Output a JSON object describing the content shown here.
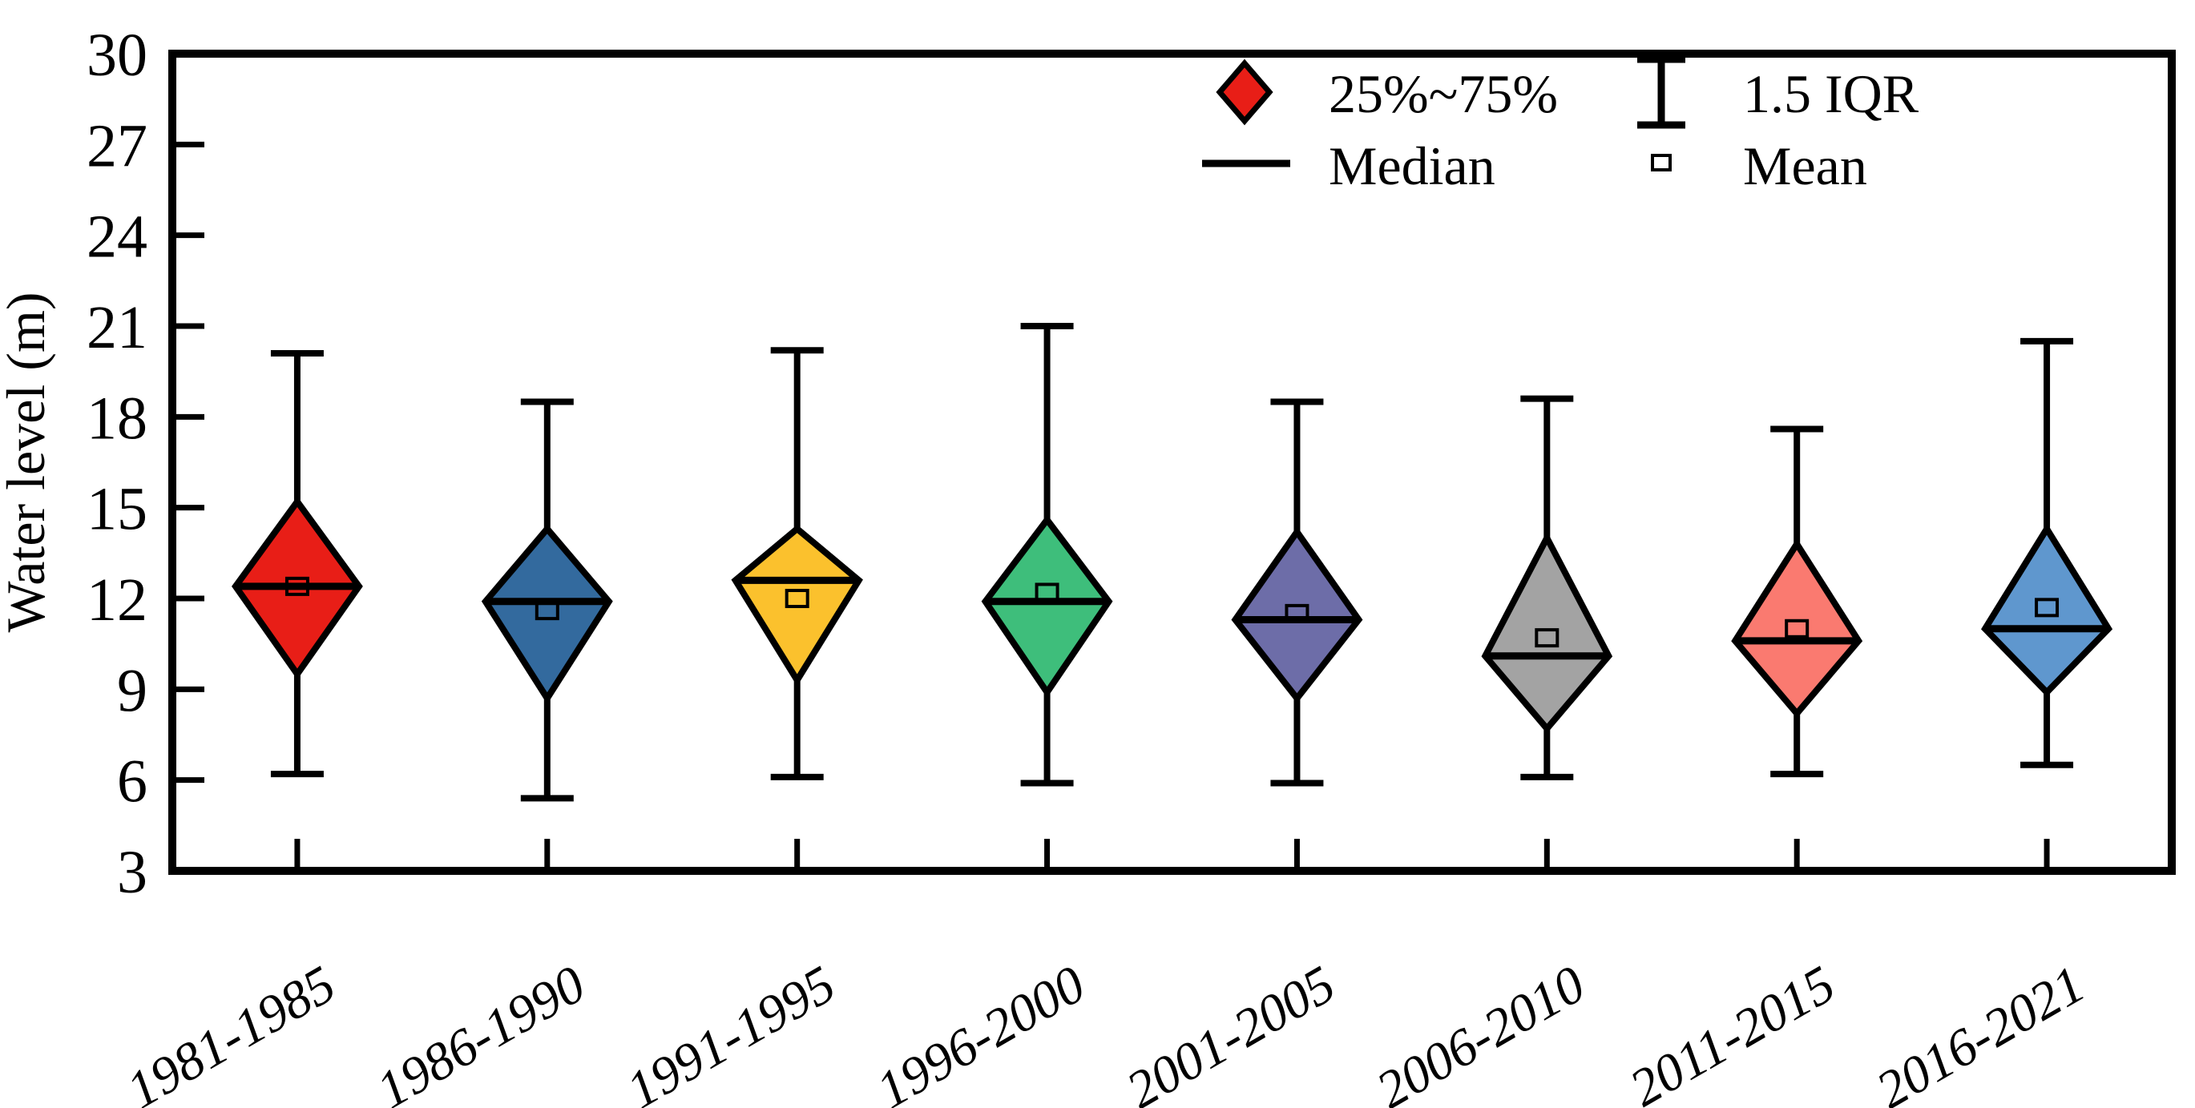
{
  "figure": {
    "background": "#ffffff",
    "frame_color": "#000000"
  },
  "legend": {
    "items": [
      {
        "swatch": "diamond",
        "label": "25%~75%",
        "color": "#E81E17"
      },
      {
        "swatch": "errorbar",
        "label": "1.5 IQR",
        "color": "#000000"
      },
      {
        "swatch": "line",
        "label": "Median",
        "color": "#000000"
      },
      {
        "swatch": "square",
        "label": "Mean",
        "color": "#000000"
      }
    ]
  },
  "chart_data": {
    "type": "box",
    "variant": "diamond-box-whisker",
    "title": "",
    "xlabel": "",
    "ylabel": "Water level (m)",
    "ylim": [
      3,
      30
    ],
    "yticks": [
      3,
      6,
      9,
      12,
      15,
      18,
      21,
      24,
      27,
      30
    ],
    "grid": false,
    "legend_position": "top-right-inside",
    "legend_entries": [
      "25%~75%",
      "1.5 IQR",
      "Median",
      "Mean"
    ],
    "categories": [
      "1981-1985",
      "1986-1990",
      "1991-1995",
      "1996-2000",
      "2001-2005",
      "2006-2010",
      "2011-2015",
      "2016-2021"
    ],
    "boxes": [
      {
        "category": "1981-1985",
        "color": "#E81E17",
        "whisker_low": 6.2,
        "q1": 9.5,
        "median": 12.4,
        "mean": 12.4,
        "q3": 15.2,
        "whisker_high": 20.1
      },
      {
        "category": "1986-1990",
        "color": "#336A9E",
        "whisker_low": 5.4,
        "q1": 8.7,
        "median": 11.9,
        "mean": 11.6,
        "q3": 14.3,
        "whisker_high": 18.5
      },
      {
        "category": "1991-1995",
        "color": "#FBC12D",
        "whisker_low": 6.1,
        "q1": 9.3,
        "median": 12.6,
        "mean": 12.0,
        "q3": 14.3,
        "whisker_high": 20.2
      },
      {
        "category": "1996-2000",
        "color": "#3EBE7B",
        "whisker_low": 5.9,
        "q1": 8.9,
        "median": 11.9,
        "mean": 12.2,
        "q3": 14.6,
        "whisker_high": 21.0
      },
      {
        "category": "2001-2005",
        "color": "#6D6DA8",
        "whisker_low": 5.9,
        "q1": 8.7,
        "median": 11.3,
        "mean": 11.5,
        "q3": 14.2,
        "whisker_high": 18.5
      },
      {
        "category": "2006-2010",
        "color": "#A3A3A3",
        "whisker_low": 6.1,
        "q1": 7.7,
        "median": 10.1,
        "mean": 10.7,
        "q3": 14.0,
        "whisker_high": 18.6
      },
      {
        "category": "2011-2015",
        "color": "#FA7A70",
        "whisker_low": 6.2,
        "q1": 8.2,
        "median": 10.6,
        "mean": 11.0,
        "q3": 13.8,
        "whisker_high": 17.6
      },
      {
        "category": "2016-2021",
        "color": "#5F97CE",
        "whisker_low": 6.5,
        "q1": 8.9,
        "median": 11.0,
        "mean": 11.7,
        "q3": 14.3,
        "whisker_high": 20.5
      }
    ]
  }
}
